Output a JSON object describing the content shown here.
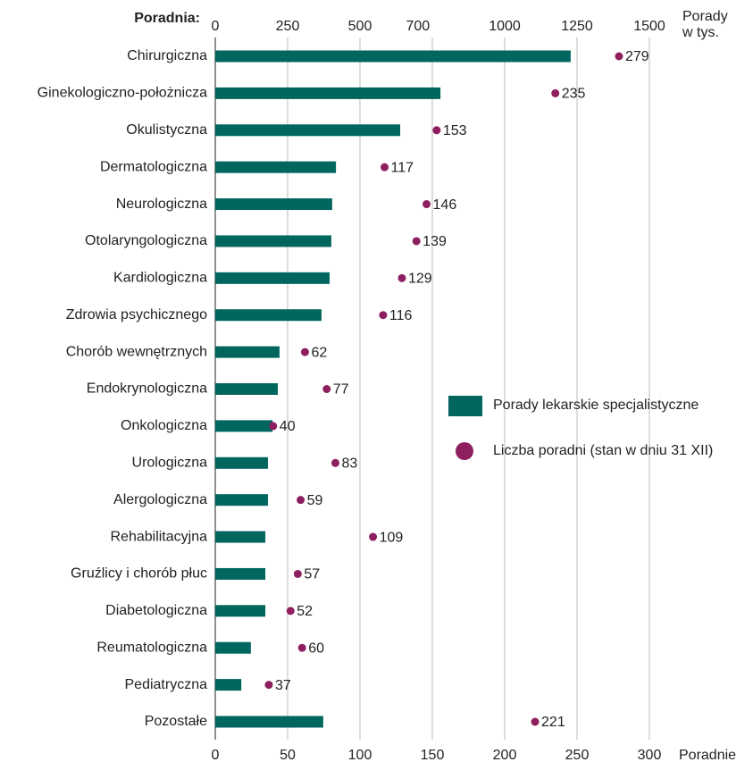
{
  "chart_data": {
    "type": "bar",
    "y_label": "Poradnia:",
    "x_label": "Poradnie",
    "x2_label": "Porady w tys.",
    "categories": [
      "Chirurgiczna",
      "Ginekologiczno-położnicza",
      "Okulistyczna",
      "Dermatologiczna",
      "Neurologiczna",
      "Otolaryngologiczna",
      "Kardiologiczna",
      "Zdrowia psychicznego",
      "Chorób wewnętrznych",
      "Endokrynologiczna",
      "Onkologiczna",
      "Urologiczna",
      "Alergologiczna",
      "Rehabilitacyjna",
      "Gruźlicy i chorób płuc",
      "Diabetologiczna",
      "Reumatologiczna",
      "Pediatryczna",
      "Pozostałe"
    ],
    "series": [
      {
        "name": "Porady lekarskie specjalistyczne",
        "color": "#00665e",
        "axis": "x2",
        "values": [
          1228,
          778,
          639,
          417,
          404,
          401,
          395,
          367,
          222,
          216,
          198,
          182,
          182,
          173,
          173,
          173,
          123,
          90,
          373
        ]
      },
      {
        "name": "Liczba poradni (stan w dniu 31 XII)",
        "color": "#8e1f5f",
        "values": [
          279,
          235,
          153,
          117,
          146,
          139,
          129,
          116,
          62,
          77,
          40,
          83,
          59,
          109,
          57,
          52,
          60,
          37,
          221
        ]
      }
    ],
    "xlim": [
      0,
      300
    ],
    "xticks": [
      0,
      50,
      100,
      150,
      200,
      250,
      300
    ],
    "x2lim": [
      0,
      1500
    ],
    "x2ticks": [
      0,
      250,
      500,
      700,
      1000,
      1250,
      1500
    ],
    "grid": true
  }
}
